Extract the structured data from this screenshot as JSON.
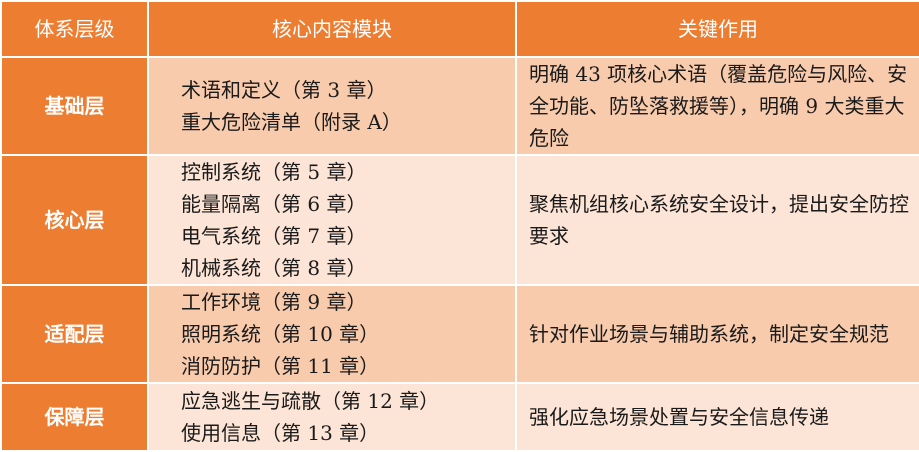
{
  "headers": [
    "体系层级",
    "核心内容模块",
    "关键作用"
  ],
  "rows": [
    {
      "layer": "基础层",
      "modules": [
        "术语和定义（第 3 章）",
        "重大危险清单（附录 A）"
      ],
      "role": "明确 43 项核心术语（覆盖危险与风险、安全功能、防坠落救援等），明确 9 大类重大危险"
    },
    {
      "layer": "核心层",
      "modules": [
        "控制系统（第 5 章）",
        "能量隔离（第 6 章）",
        "电气系统（第 7 章）",
        "机械系统（第 8 章）"
      ],
      "role": "聚焦机组核心系统安全设计，提出安全防控要求"
    },
    {
      "layer": "适配层",
      "modules": [
        "工作环境（第 9 章）",
        "照明系统（第 10 章）",
        "消防防护（第 11 章）"
      ],
      "role": "针对作业场景与辅助系统，制定安全规范"
    },
    {
      "layer": "保障层",
      "modules": [
        "应急逃生与疏散（第 12 章）",
        "使用信息（第 13 章）"
      ],
      "role": "强化应急场景处置与安全信息传递"
    }
  ],
  "colors": {
    "header": "#ED7D31",
    "row_dark": "#F8CBAD",
    "row_light": "#FCE4D6"
  }
}
